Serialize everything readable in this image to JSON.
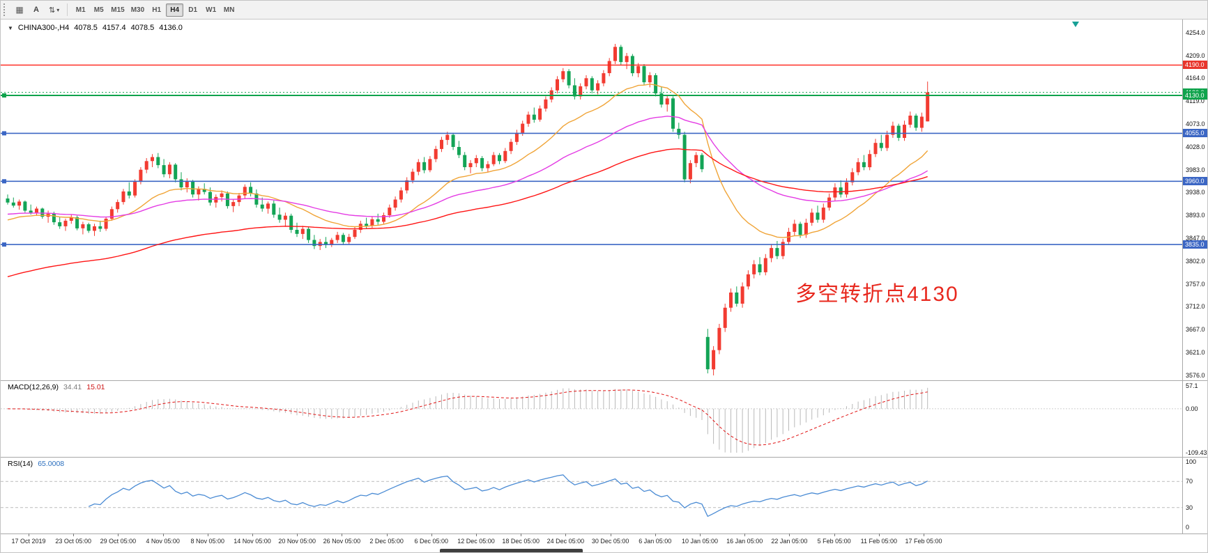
{
  "toolbar": {
    "grid_button_icon": "▦",
    "annotate_button_label": "A",
    "scale_button_icon": "⇅",
    "scale_button_caret": "▾",
    "timeframes": [
      "M1",
      "M5",
      "M15",
      "M30",
      "H1",
      "H4",
      "D1",
      "W1",
      "MN"
    ],
    "active_timeframe": "H4"
  },
  "chart_header": {
    "collapse_icon": "▼",
    "symbol": "CHINA300-,H4",
    "open": "4078.5",
    "high": "4157.4",
    "low": "4078.5",
    "close": "4136.0"
  },
  "annotation": {
    "text": "多空转折点4130",
    "color": "#e8281e"
  },
  "price_axis": {
    "highlighted": [
      {
        "label": "4190.0",
        "value": 4190,
        "bg": "#e8352c"
      },
      {
        "label": "4136.0",
        "value": 4136,
        "bg": "#0fa34c"
      },
      {
        "label": "4130.0",
        "value": 4130,
        "bg": "#0fa34c"
      },
      {
        "label": "4055.0",
        "value": 4055,
        "bg": "#3b66c4"
      },
      {
        "label": "3960.0",
        "value": 3960,
        "bg": "#3b66c4"
      },
      {
        "label": "3835.0",
        "value": 3835,
        "bg": "#3b66c4"
      }
    ]
  },
  "macd_panel": {
    "label": "MACD(12,26,9)",
    "main_value": "34.41",
    "signal_value": "15.01",
    "axis_labels": [
      "57.1",
      "0.00",
      "-109.43"
    ],
    "scale_max": 57.1,
    "scale_min": -109.43,
    "histogram_color": "#b9b9b9",
    "signal_color": "#e11414",
    "params": {
      "fast": 12,
      "slow": 26,
      "signal": 9
    }
  },
  "rsi_panel": {
    "label": "RSI(14)",
    "value": "65.0008",
    "period": 14,
    "axis_labels": [
      "100",
      "70",
      "30",
      "0"
    ],
    "levels": [
      70,
      30
    ],
    "line_color": "#4a8bd4"
  },
  "chart_data": {
    "type": "candlestick",
    "title": "CHINA300-,H4 4078.5 4157.4 4078.5 4136.0",
    "symbol": "CHINA300-",
    "timeframe": "H4",
    "price_range": {
      "max": 4254,
      "min": 3576
    },
    "up_color": "#f23b31",
    "down_color": "#13a456",
    "y_ticks": [
      "4254.0",
      "4209.0",
      "4164.0",
      "4119.0",
      "4073.0",
      "4028.0",
      "3983.0",
      "3938.0",
      "3893.0",
      "3847.0",
      "3802.0",
      "3757.0",
      "3712.0",
      "3667.0",
      "3621.0",
      "3576.0"
    ],
    "time_labels": [
      "17 Oct 2019",
      "23 Oct 05:00",
      "29 Oct 05:00",
      "4 Nov 05:00",
      "8 Nov 05:00",
      "14 Nov 05:00",
      "20 Nov 05:00",
      "26 Nov 05:00",
      "2 Dec 05:00",
      "6 Dec 05:00",
      "12 Dec 05:00",
      "18 Dec 05:00",
      "24 Dec 05:00",
      "30 Dec 05:00",
      "6 Jan 05:00",
      "10 Jan 05:00",
      "16 Jan 05:00",
      "22 Jan 05:00",
      "5 Feb 05:00",
      "11 Feb 05:00",
      "17 Feb 05:00"
    ],
    "horizontal_lines": [
      {
        "price": 4190,
        "color": "#ff2017",
        "width": 1.4,
        "dash": null,
        "anchor": false
      },
      {
        "price": 4136,
        "color": "#0fa34c",
        "width": 1,
        "dash": "2,3",
        "anchor": false
      },
      {
        "price": 4130,
        "color": "#0fa34c",
        "width": 2,
        "dash": null,
        "anchor": true
      },
      {
        "price": 4055,
        "color": "#3b66c4",
        "width": 1.6,
        "dash": null,
        "anchor": true
      },
      {
        "price": 3960,
        "color": "#3b66c4",
        "width": 1.6,
        "dash": null,
        "anchor": true
      },
      {
        "price": 3835,
        "color": "#3b66c4",
        "width": 1.6,
        "dash": null,
        "anchor": true
      }
    ],
    "moving_averages": [
      {
        "name": "fast",
        "color": "#f0a437",
        "period": 20,
        "seed": 3880
      },
      {
        "name": "mid",
        "color": "#e43ce4",
        "period": 48,
        "seed": 3894
      },
      {
        "name": "slow",
        "color": "#ff1414",
        "period": 90,
        "seed": 3768
      }
    ],
    "candles_ohlc": [
      [
        3926,
        3934,
        3914,
        3918
      ],
      [
        3918,
        3928,
        3908,
        3912
      ],
      [
        3912,
        3924,
        3904,
        3920
      ],
      [
        3920,
        3922,
        3898,
        3902
      ],
      [
        3902,
        3914,
        3894,
        3898
      ],
      [
        3898,
        3910,
        3892,
        3906
      ],
      [
        3906,
        3908,
        3886,
        3890
      ],
      [
        3890,
        3902,
        3878,
        3896
      ],
      [
        3896,
        3900,
        3874,
        3879
      ],
      [
        3879,
        3890,
        3866,
        3871
      ],
      [
        3871,
        3886,
        3862,
        3882
      ],
      [
        3882,
        3894,
        3876,
        3889
      ],
      [
        3889,
        3892,
        3863,
        3867
      ],
      [
        3867,
        3880,
        3855,
        3875
      ],
      [
        3875,
        3878,
        3858,
        3862
      ],
      [
        3862,
        3876,
        3852,
        3871
      ],
      [
        3871,
        3882,
        3860,
        3866
      ],
      [
        3866,
        3890,
        3862,
        3886
      ],
      [
        3886,
        3910,
        3882,
        3905
      ],
      [
        3905,
        3924,
        3898,
        3919
      ],
      [
        3919,
        3945,
        3914,
        3940
      ],
      [
        3940,
        3958,
        3926,
        3932
      ],
      [
        3932,
        3964,
        3928,
        3959
      ],
      [
        3959,
        3988,
        3954,
        3983
      ],
      [
        3983,
        4006,
        3976,
        4000
      ],
      [
        4000,
        4014,
        3988,
        4008
      ],
      [
        4008,
        4016,
        3986,
        3992
      ],
      [
        3992,
        4004,
        3968,
        3974
      ],
      [
        3974,
        3998,
        3966,
        3993
      ],
      [
        3993,
        3996,
        3958,
        3964
      ],
      [
        3964,
        3978,
        3942,
        3948
      ],
      [
        3948,
        3966,
        3938,
        3960
      ],
      [
        3960,
        3963,
        3928,
        3934
      ],
      [
        3934,
        3950,
        3922,
        3945
      ],
      [
        3945,
        3956,
        3934,
        3939
      ],
      [
        3939,
        3948,
        3912,
        3918
      ],
      [
        3918,
        3934,
        3908,
        3929
      ],
      [
        3929,
        3942,
        3920,
        3936
      ],
      [
        3936,
        3940,
        3906,
        3911
      ],
      [
        3911,
        3925,
        3899,
        3919
      ],
      [
        3919,
        3937,
        3911,
        3932
      ],
      [
        3932,
        3954,
        3926,
        3949
      ],
      [
        3949,
        3958,
        3930,
        3936
      ],
      [
        3936,
        3944,
        3908,
        3914
      ],
      [
        3914,
        3928,
        3900,
        3906
      ],
      [
        3906,
        3920,
        3896,
        3916
      ],
      [
        3916,
        3922,
        3888,
        3894
      ],
      [
        3894,
        3908,
        3878,
        3884
      ],
      [
        3884,
        3898,
        3870,
        3892
      ],
      [
        3892,
        3896,
        3858,
        3864
      ],
      [
        3864,
        3878,
        3850,
        3856
      ],
      [
        3856,
        3872,
        3846,
        3866
      ],
      [
        3866,
        3870,
        3838,
        3844
      ],
      [
        3844,
        3854,
        3826,
        3832
      ],
      [
        3832,
        3846,
        3824,
        3840
      ],
      [
        3840,
        3850,
        3828,
        3834
      ],
      [
        3834,
        3848,
        3830,
        3844
      ],
      [
        3844,
        3860,
        3838,
        3854
      ],
      [
        3854,
        3858,
        3834,
        3840
      ],
      [
        3840,
        3856,
        3836,
        3850
      ],
      [
        3850,
        3870,
        3846,
        3864
      ],
      [
        3864,
        3882,
        3858,
        3876
      ],
      [
        3876,
        3888,
        3866,
        3872
      ],
      [
        3872,
        3890,
        3868,
        3885
      ],
      [
        3885,
        3896,
        3874,
        3880
      ],
      [
        3880,
        3898,
        3876,
        3893
      ],
      [
        3893,
        3914,
        3888,
        3908
      ],
      [
        3908,
        3930,
        3902,
        3924
      ],
      [
        3924,
        3948,
        3918,
        3942
      ],
      [
        3942,
        3968,
        3936,
        3962
      ],
      [
        3962,
        3985,
        3956,
        3979
      ],
      [
        3979,
        4004,
        3972,
        3998
      ],
      [
        3998,
        4008,
        3976,
        3982
      ],
      [
        3982,
        4010,
        3978,
        4004
      ],
      [
        4004,
        4030,
        3998,
        4024
      ],
      [
        4024,
        4048,
        4018,
        4042
      ],
      [
        4042,
        4058,
        4032,
        4052
      ],
      [
        4052,
        4056,
        4022,
        4028
      ],
      [
        4028,
        4040,
        4006,
        4012
      ],
      [
        4012,
        4018,
        3982,
        3988
      ],
      [
        3988,
        4002,
        3976,
        3996
      ],
      [
        3996,
        4012,
        3988,
        4006
      ],
      [
        4006,
        4010,
        3980,
        3986
      ],
      [
        3986,
        4000,
        3978,
        3994
      ],
      [
        3994,
        4018,
        3990,
        4012
      ],
      [
        4012,
        4016,
        3994,
        4000
      ],
      [
        4000,
        4026,
        3996,
        4020
      ],
      [
        4020,
        4044,
        4014,
        4038
      ],
      [
        4038,
        4062,
        4032,
        4056
      ],
      [
        4056,
        4080,
        4050,
        4074
      ],
      [
        4074,
        4098,
        4068,
        4092
      ],
      [
        4092,
        4106,
        4076,
        4082
      ],
      [
        4082,
        4110,
        4078,
        4104
      ],
      [
        4104,
        4128,
        4098,
        4122
      ],
      [
        4122,
        4146,
        4116,
        4140
      ],
      [
        4140,
        4168,
        4134,
        4162
      ],
      [
        4162,
        4184,
        4156,
        4178
      ],
      [
        4178,
        4182,
        4144,
        4150
      ],
      [
        4150,
        4164,
        4122,
        4128
      ],
      [
        4128,
        4154,
        4122,
        4148
      ],
      [
        4148,
        4170,
        4142,
        4164
      ],
      [
        4164,
        4168,
        4134,
        4140
      ],
      [
        4140,
        4160,
        4132,
        4154
      ],
      [
        4154,
        4180,
        4148,
        4174
      ],
      [
        4174,
        4204,
        4168,
        4198
      ],
      [
        4198,
        4232,
        4192,
        4226
      ],
      [
        4226,
        4230,
        4190,
        4196
      ],
      [
        4196,
        4214,
        4182,
        4208
      ],
      [
        4208,
        4212,
        4168,
        4174
      ],
      [
        4174,
        4194,
        4166,
        4188
      ],
      [
        4188,
        4192,
        4150,
        4156
      ],
      [
        4156,
        4176,
        4146,
        4170
      ],
      [
        4170,
        4174,
        4128,
        4134
      ],
      [
        4134,
        4148,
        4106,
        4112
      ],
      [
        4112,
        4130,
        4098,
        4124
      ],
      [
        4124,
        4128,
        4058,
        4064
      ],
      [
        4064,
        4076,
        4044,
        4052
      ],
      [
        4052,
        4058,
        3958,
        3964
      ],
      [
        3964,
        4002,
        3956,
        3996
      ],
      [
        3996,
        4018,
        3988,
        4012
      ],
      [
        4012,
        4016,
        3978,
        3984
      ],
      [
        3652,
        3668,
        3580,
        3588
      ],
      [
        3588,
        3634,
        3576,
        3626
      ],
      [
        3626,
        3678,
        3618,
        3670
      ],
      [
        3670,
        3718,
        3662,
        3710
      ],
      [
        3710,
        3748,
        3702,
        3740
      ],
      [
        3740,
        3752,
        3712,
        3718
      ],
      [
        3718,
        3760,
        3710,
        3752
      ],
      [
        3752,
        3784,
        3746,
        3776
      ],
      [
        3776,
        3804,
        3768,
        3796
      ],
      [
        3796,
        3810,
        3774,
        3780
      ],
      [
        3780,
        3816,
        3774,
        3808
      ],
      [
        3808,
        3836,
        3800,
        3828
      ],
      [
        3828,
        3842,
        3806,
        3812
      ],
      [
        3812,
        3846,
        3806,
        3840
      ],
      [
        3840,
        3868,
        3834,
        3860
      ],
      [
        3860,
        3884,
        3852,
        3876
      ],
      [
        3876,
        3880,
        3848,
        3854
      ],
      [
        3854,
        3886,
        3848,
        3878
      ],
      [
        3878,
        3906,
        3872,
        3898
      ],
      [
        3898,
        3912,
        3878,
        3884
      ],
      [
        3884,
        3916,
        3878,
        3908
      ],
      [
        3908,
        3936,
        3902,
        3928
      ],
      [
        3928,
        3956,
        3922,
        3948
      ],
      [
        3948,
        3962,
        3928,
        3934
      ],
      [
        3934,
        3966,
        3928,
        3958
      ],
      [
        3958,
        3986,
        3952,
        3978
      ],
      [
        3978,
        4006,
        3972,
        3998
      ],
      [
        3998,
        4012,
        3982,
        3988
      ],
      [
        3988,
        4022,
        3982,
        4014
      ],
      [
        4014,
        4044,
        4008,
        4036
      ],
      [
        4036,
        4052,
        4020,
        4026
      ],
      [
        4026,
        4060,
        4020,
        4052
      ],
      [
        4052,
        4078,
        4046,
        4070
      ],
      [
        4070,
        4074,
        4040,
        4046
      ],
      [
        4046,
        4080,
        4040,
        4072
      ],
      [
        4072,
        4098,
        4066,
        4090
      ],
      [
        4090,
        4094,
        4060,
        4066
      ],
      [
        4066,
        4096,
        4058,
        4088
      ],
      [
        4078.5,
        4157.4,
        4078.5,
        4136.0
      ]
    ]
  }
}
